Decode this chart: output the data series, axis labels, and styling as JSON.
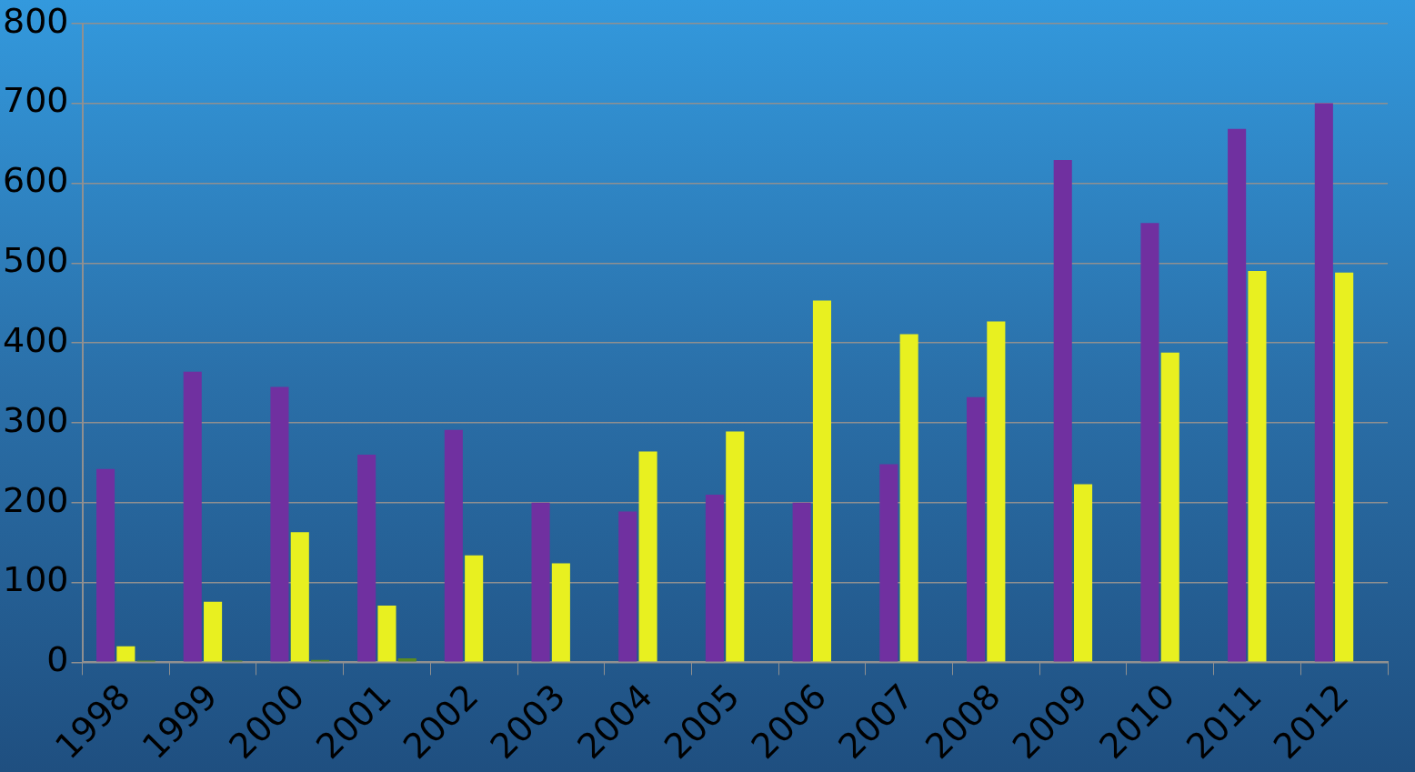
{
  "chart_data": {
    "type": "bar",
    "categories": [
      "1998",
      "1999",
      "2000",
      "2001",
      "2002",
      "2003",
      "2004",
      "2005",
      "2006",
      "2007",
      "2008",
      "2009",
      "2010",
      "2011",
      "2012"
    ],
    "series": [
      {
        "color": "#7030a0",
        "values": [
          242,
          364,
          345,
          260,
          291,
          200,
          189,
          210,
          200,
          248,
          332,
          629,
          550,
          668,
          700
        ]
      },
      {
        "color": "#e8f020",
        "values": [
          20,
          76,
          163,
          71,
          134,
          124,
          264,
          289,
          453,
          411,
          427,
          223,
          388,
          490,
          488
        ]
      },
      {
        "color": "#5a8a20",
        "values": [
          2,
          2,
          3,
          5,
          null,
          null,
          null,
          null,
          null,
          null,
          null,
          null,
          null,
          null,
          null
        ]
      }
    ],
    "ylim": [
      0,
      800
    ],
    "yticks": [
      0,
      100,
      200,
      300,
      400,
      500,
      600,
      700,
      800
    ],
    "grid": "y",
    "legend": false
  }
}
